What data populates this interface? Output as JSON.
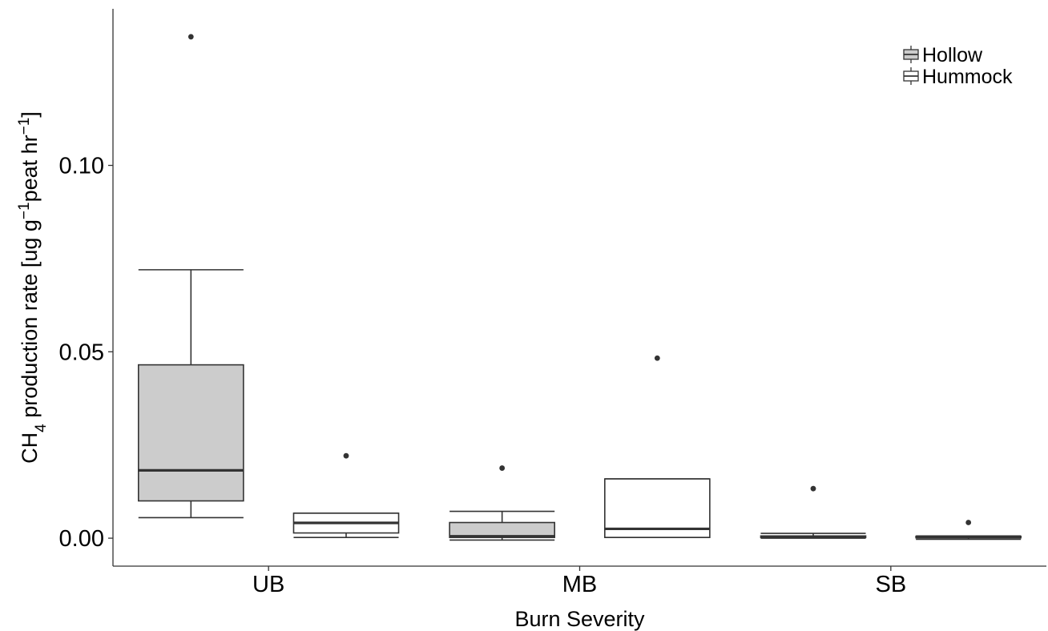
{
  "chart_data": {
    "type": "boxplot",
    "xlabel": "Burn Severity",
    "ylabel": {
      "prefix": "CH",
      "sub": "4",
      "middle": " production rate [ug g",
      "sup1": "−1",
      "middle2": "peat hr",
      "sup2": "−1",
      "suffix": "]"
    },
    "categories": [
      "UB",
      "MB",
      "SB"
    ],
    "y_ticks": [
      0.0,
      0.05,
      0.1
    ],
    "y_tick_labels": [
      "0.00",
      "0.05",
      "0.10"
    ],
    "ylim": [
      -0.0075,
      0.142
    ],
    "legend": {
      "position": "top-right"
    },
    "series": [
      {
        "name": "Hollow",
        "fill": "#cccccc",
        "boxes": [
          {
            "category": "UB",
            "lower_whisker": 0.0055,
            "q1": 0.01,
            "median": 0.0182,
            "q3": 0.0465,
            "upper_whisker": 0.072,
            "outliers": [
              0.1345
            ]
          },
          {
            "category": "MB",
            "lower_whisker": -0.0005,
            "q1": 0.0002,
            "median": 0.0005,
            "q3": 0.0042,
            "upper_whisker": 0.0072,
            "outliers": [
              0.0188
            ]
          },
          {
            "category": "SB",
            "lower_whisker": 0.0,
            "q1": 0.0002,
            "median": 0.0004,
            "q3": 0.0006,
            "upper_whisker": 0.0013,
            "outliers": [
              0.0133
            ]
          }
        ]
      },
      {
        "name": "Hummock",
        "fill": "#ffffff",
        "boxes": [
          {
            "category": "UB",
            "lower_whisker": 0.0002,
            "q1": 0.0014,
            "median": 0.0041,
            "q3": 0.0067,
            "upper_whisker": 0.0067,
            "outliers": [
              0.0221
            ]
          },
          {
            "category": "MB",
            "lower_whisker": 0.0002,
            "q1": 0.0002,
            "median": 0.0025,
            "q3": 0.0159,
            "upper_whisker": 0.0159,
            "outliers": [
              0.0483
            ]
          },
          {
            "category": "SB",
            "lower_whisker": -0.0003,
            "q1": 0.0001,
            "median": 0.0003,
            "q3": 0.0005,
            "upper_whisker": 0.0006,
            "outliers": [
              0.0042
            ]
          }
        ]
      }
    ]
  }
}
